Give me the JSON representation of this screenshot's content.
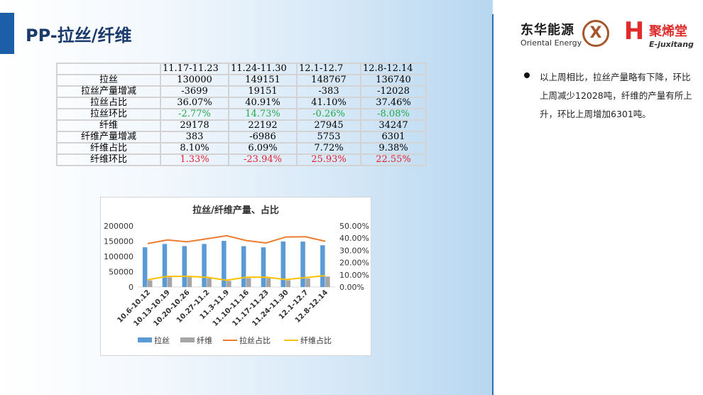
{
  "slide": {
    "title": "PP-拉丝/纤维"
  },
  "logos": {
    "oriental": {
      "cn": "东华能源",
      "en": "Oriental Energy",
      "mark": "X"
    },
    "juxitang": {
      "cn": "聚烯堂",
      "en": "E-juxitang",
      "mark": "H"
    }
  },
  "notes": {
    "text": "以上周相比，拉丝产量略有下降，环比上周减少12028吨，纤维的产量有所上升，环比上周增加6301吨。"
  },
  "table": {
    "headers": [
      "",
      "11.17-11.23",
      "11.24-11.30",
      "12.1-12.7",
      "12.8-12.14"
    ],
    "rows": [
      {
        "label": "拉丝",
        "cells": [
          "130000",
          "149151",
          "148767",
          "136740"
        ],
        "tone": ""
      },
      {
        "label": "拉丝产量增减",
        "cells": [
          "-3699",
          "19151",
          "-383",
          "-12028"
        ],
        "tone": ""
      },
      {
        "label": "拉丝占比",
        "cells": [
          "36.07%",
          "40.91%",
          "41.10%",
          "37.46%"
        ],
        "tone": ""
      },
      {
        "label": "拉丝环比",
        "cells": [
          "-2.77%",
          "14.73%",
          "-0.26%",
          "-8.08%"
        ],
        "tone": "green"
      },
      {
        "label": "纤维",
        "cells": [
          "29178",
          "22192",
          "27945",
          "34247"
        ],
        "tone": ""
      },
      {
        "label": "纤维产量增减",
        "cells": [
          "383",
          "-6986",
          "5753",
          "6301"
        ],
        "tone": ""
      },
      {
        "label": "纤维占比",
        "cells": [
          "8.10%",
          "6.09%",
          "7.72%",
          "9.38%"
        ],
        "tone": ""
      },
      {
        "label": "纤维环比",
        "cells": [
          "1.33%",
          "-23.94%",
          "25.93%",
          "22.55%"
        ],
        "tone": "red"
      }
    ]
  },
  "chart_data": {
    "type": "bar",
    "title": "拉丝/纤维产量、占比",
    "categories": [
      "10.6-10.12",
      "10.13-10.19",
      "10.20-10.26",
      "10.27-11.2",
      "11.3-11.9",
      "11.10-11.16",
      "11.17-11.23",
      "11.24-11.30",
      "12.1-12.7",
      "12.8-12.14"
    ],
    "series": [
      {
        "name": "拉丝",
        "kind": "bar",
        "axis": "left",
        "color": "#5b9bd5",
        "values": [
          130000,
          141000,
          134000,
          141000,
          151000,
          133700,
          130000,
          149151,
          148767,
          136740
        ]
      },
      {
        "name": "纤维",
        "kind": "bar",
        "axis": "left",
        "color": "#a5a5a5",
        "values": [
          22000,
          32000,
          32000,
          29000,
          20000,
          29000,
          29178,
          22192,
          27945,
          34247
        ]
      },
      {
        "name": "拉丝占比",
        "kind": "line",
        "axis": "right",
        "color": "#ed7d31",
        "values": [
          0.355,
          0.385,
          0.37,
          0.395,
          0.42,
          0.38,
          0.3607,
          0.4091,
          0.411,
          0.3746
        ]
      },
      {
        "name": "纤维占比",
        "kind": "line",
        "axis": "right",
        "color": "#ffc000",
        "values": [
          0.06,
          0.087,
          0.087,
          0.08,
          0.055,
          0.08,
          0.081,
          0.0609,
          0.0772,
          0.0938
        ]
      }
    ],
    "y_left": {
      "min": 0,
      "max": 200000,
      "ticks": [
        "200000",
        "150000",
        "100000",
        "50000",
        "0"
      ]
    },
    "y_right": {
      "min": 0,
      "max": 0.5,
      "ticks": [
        "50.00%",
        "40.00%",
        "30.00%",
        "20.00%",
        "10.00%",
        "0.00%"
      ]
    },
    "legend": "bottom",
    "grid": false
  }
}
